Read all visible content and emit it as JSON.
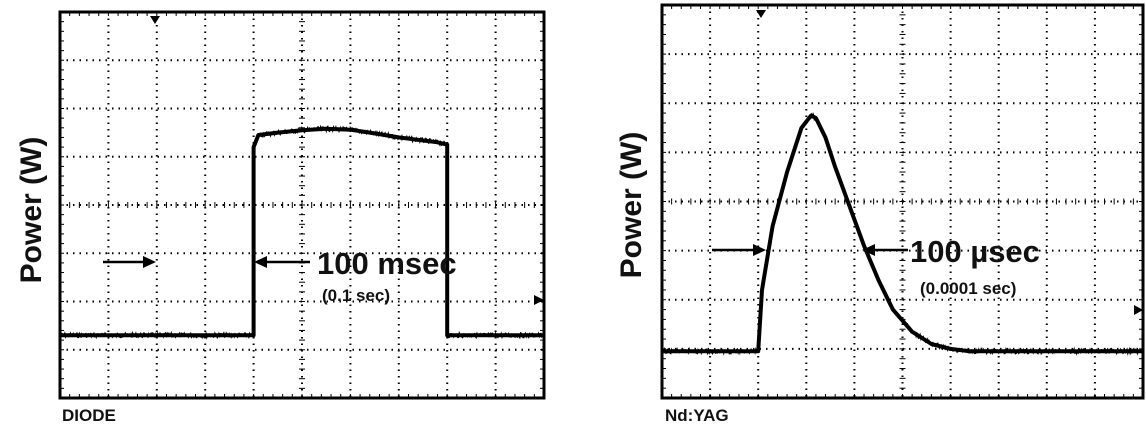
{
  "chart_data": [
    {
      "type": "line",
      "name": "diode",
      "caption": "DIODE",
      "ylabel": "Power (W)",
      "xlabel": "",
      "grid": true,
      "grid_divisions": {
        "x": 10,
        "y": 8
      },
      "x_units": "ms",
      "xlim": [
        0,
        500
      ],
      "ylim": [
        0,
        8
      ],
      "series": [
        {
          "x": [
            0,
            200,
            200,
            205,
            225,
            250,
            275,
            300,
            320,
            350,
            390,
            400,
            400,
            500
          ],
          "y": [
            1.3,
            1.3,
            5.2,
            5.45,
            5.5,
            5.55,
            5.58,
            5.56,
            5.5,
            5.4,
            5.3,
            5.25,
            1.3,
            1.3
          ]
        }
      ],
      "annotation": {
        "main": "100 msec",
        "sub": "(0.1 sec)",
        "pulse_width": "100 msec"
      }
    },
    {
      "type": "line",
      "name": "ndyag",
      "caption": "Nd:YAG",
      "ylabel": "Power (W)",
      "xlabel": "",
      "grid": true,
      "grid_divisions": {
        "x": 10,
        "y": 8
      },
      "x_units": "usec",
      "xlim": [
        0,
        500
      ],
      "ylim": [
        0,
        8
      ],
      "series": [
        {
          "x": [
            0,
            100,
            104,
            115,
            130,
            145,
            155,
            160,
            170,
            180,
            195,
            210,
            225,
            240,
            260,
            280,
            300,
            320,
            340,
            360,
            500
          ],
          "y": [
            0.95,
            0.95,
            2.2,
            3.5,
            4.6,
            5.5,
            5.75,
            5.7,
            5.3,
            4.7,
            3.9,
            3.1,
            2.4,
            1.8,
            1.35,
            1.1,
            1.0,
            0.95,
            0.95,
            0.95,
            0.95
          ]
        }
      ],
      "annotation": {
        "main": "100 µsec",
        "sub": "(0.0001 sec)",
        "pulse_width": "100 usec"
      }
    }
  ]
}
